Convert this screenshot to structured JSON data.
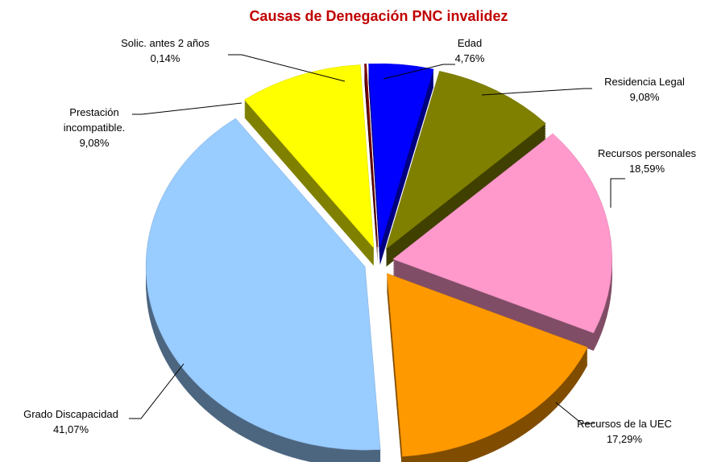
{
  "chart_data": {
    "type": "pie",
    "title": "Causas de Denegación PNC invalidez",
    "categories": [
      "Edad",
      "Residencia Legal",
      "Recursos personales",
      "Recursos de la UEC",
      "Grado Discapacidad",
      "Prestación incompatible.",
      "Solic. antes 2 años"
    ],
    "values": [
      4.76,
      9.08,
      18.59,
      17.29,
      41.07,
      9.08,
      0.14
    ],
    "value_labels": [
      "4,76%",
      "9,08%",
      "18,59%",
      "17,29%",
      "41,07%",
      "9,08%",
      "0,14%"
    ],
    "colors": [
      "#0000ff",
      "#808000",
      "#ff99cc",
      "#ff9900",
      "#99ccff",
      "#ffff00",
      "#800000"
    ]
  }
}
